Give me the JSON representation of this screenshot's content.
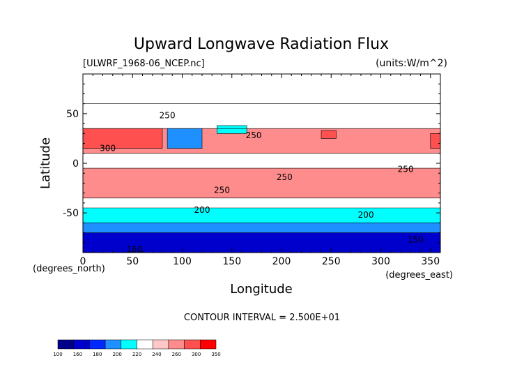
{
  "chart_data": {
    "type": "heatmap",
    "title": "Upward Longwave Radiation Flux",
    "file_label": "[ULWRF_1968-06_NCEP.nc]",
    "units_label": "(units:W/m^2)",
    "xlabel": "Longitude",
    "ylabel": "Latitude",
    "x_unit_label": "(degrees_east)",
    "y_unit_label": "(degrees_north)",
    "xlim": [
      0,
      360
    ],
    "ylim": [
      -90,
      90
    ],
    "x_ticks": [
      0,
      50,
      100,
      150,
      200,
      250,
      300,
      350
    ],
    "y_ticks": [
      50,
      0,
      -50
    ],
    "contour_interval_text": "CONTOUR INTERVAL = 2.500E+01",
    "contour_labels": [
      {
        "text": "250",
        "lon": 85,
        "lat": 48
      },
      {
        "text": "250",
        "lon": 172,
        "lat": 28
      },
      {
        "text": "300",
        "lon": 25,
        "lat": 15
      },
      {
        "text": "250",
        "lon": 203,
        "lat": -14
      },
      {
        "text": "250",
        "lon": 325,
        "lat": -6
      },
      {
        "text": "250",
        "lon": 140,
        "lat": -27
      },
      {
        "text": "200",
        "lon": 120,
        "lat": -47
      },
      {
        "text": "200",
        "lon": 285,
        "lat": -52
      },
      {
        "text": "150",
        "lon": 52,
        "lat": -87
      },
      {
        "text": "150",
        "lon": 335,
        "lat": -77
      }
    ],
    "colorbar": {
      "levels": [
        "100",
        "160",
        "180",
        "200",
        "220",
        "240",
        "260",
        "300",
        "350"
      ],
      "colors": [
        "#00008b",
        "#0000cd",
        "#0028ff",
        "#1e90ff",
        "#00ffff",
        "#ffffff",
        "#ffc8c8",
        "#ff8c8c",
        "#ff5050",
        "#ff0000"
      ]
    },
    "latitude_bands": [
      {
        "lat_min": -90,
        "lat_max": -70,
        "value_wm2": 150
      },
      {
        "lat_min": -70,
        "lat_max": -60,
        "value_wm2": 190
      },
      {
        "lat_min": -60,
        "lat_max": -45,
        "value_wm2": 210
      },
      {
        "lat_min": -45,
        "lat_max": -35,
        "value_wm2": 230
      },
      {
        "lat_min": -35,
        "lat_max": -5,
        "value_wm2": 270
      },
      {
        "lat_min": -5,
        "lat_max": 10,
        "value_wm2": 225
      },
      {
        "lat_min": 10,
        "lat_max": 35,
        "value_wm2": 270
      },
      {
        "lat_min": 35,
        "lat_max": 60,
        "value_wm2": 235
      },
      {
        "lat_min": 60,
        "lat_max": 90,
        "value_wm2": 220
      }
    ],
    "hot_spots": [
      {
        "lon_min": 0,
        "lon_max": 80,
        "lat_min": 15,
        "lat_max": 35,
        "value_wm2": 320
      },
      {
        "lon_min": 350,
        "lon_max": 360,
        "lat_min": 15,
        "lat_max": 30,
        "value_wm2": 320
      },
      {
        "lon_min": 240,
        "lon_max": 255,
        "lat_min": 25,
        "lat_max": 33,
        "value_wm2": 310
      }
    ],
    "cold_spots": [
      {
        "lon_min": 85,
        "lon_max": 120,
        "lat_min": 15,
        "lat_max": 35,
        "value_wm2": 190
      },
      {
        "lon_min": 135,
        "lon_max": 165,
        "lat_min": 30,
        "lat_max": 38,
        "value_wm2": 200
      }
    ]
  }
}
